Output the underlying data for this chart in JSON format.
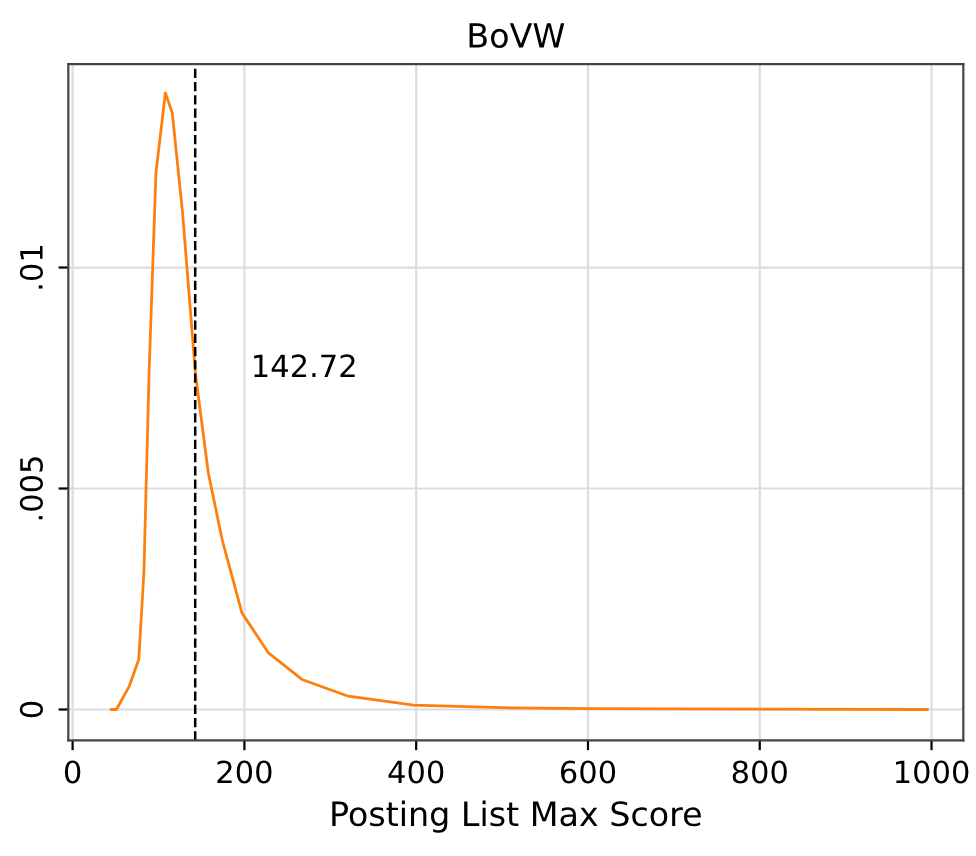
{
  "chart_data": {
    "type": "line",
    "title": "BoVW",
    "xlabel": "Posting List Max Score",
    "x": [
      45,
      51,
      66,
      77,
      83,
      89,
      97,
      108,
      116,
      128,
      143,
      158,
      174,
      197,
      228,
      267,
      321,
      397,
      500,
      600,
      800,
      995
    ],
    "series": [
      {
        "color": "#ff7f0e",
        "values": [
          0,
          0,
          0.00053,
          0.00113,
          0.0031,
          0.0076,
          0.01214,
          0.01395,
          0.0135,
          0.01124,
          0.0076,
          0.00535,
          0.00385,
          0.00219,
          0.00128,
          0.00068,
          0.0003,
          0.0001,
          4e-05,
          2e-05,
          1e-05,
          0
        ]
      }
    ],
    "xlim": [
      -5,
      1037
    ],
    "ylim": [
      -0.0007,
      0.0146
    ],
    "xticks": [
      0,
      200,
      400,
      600,
      800,
      1000
    ],
    "yticks": [
      {
        "value": 0,
        "label": "0"
      },
      {
        "value": 0.005,
        "label": ".005"
      },
      {
        "value": 0.01,
        "label": ".01"
      }
    ],
    "grid": true,
    "legend": false,
    "marker": "none",
    "line_style": "solid",
    "ref_lines": [
      {
        "axis": "x",
        "value": 142.72,
        "label": "142.72",
        "color": "#000000",
        "line_style": "dashed"
      }
    ]
  }
}
